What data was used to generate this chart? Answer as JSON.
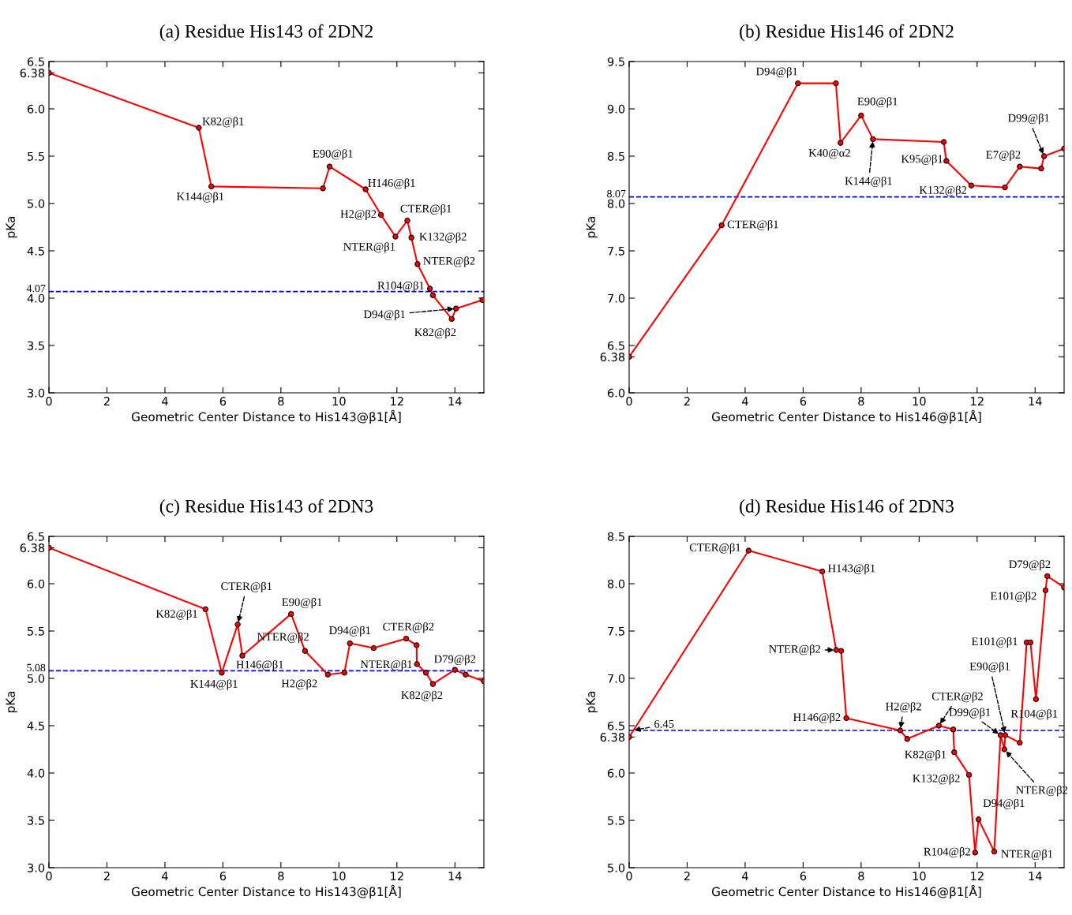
{
  "chart_data": [
    {
      "type": "line",
      "title": "(a) Residue His143 of 2DN2",
      "xlabel": "Geometric Center Distance to His143@β1[Å]",
      "ylabel": "pKa",
      "xlim": [
        0,
        15
      ],
      "xticks": [
        0,
        2,
        4,
        6,
        8,
        10,
        12,
        14
      ],
      "ylim": [
        3.0,
        6.5
      ],
      "yticks": [
        {
          "value": 3.0,
          "label": "3.0"
        },
        {
          "value": 3.5,
          "label": "3.5"
        },
        {
          "value": 4.0,
          "label": "4.0"
        },
        {
          "value": 4.5,
          "label": "4.5"
        },
        {
          "value": 5.0,
          "label": "5.0"
        },
        {
          "value": 5.5,
          "label": "5.5"
        },
        {
          "value": 6.0,
          "label": "6.0"
        },
        {
          "value": 6.38,
          "label": "6.38"
        },
        {
          "value": 6.5,
          "label": "6.5"
        }
      ],
      "grid": false,
      "marker": "circle",
      "line_style": "solid",
      "series": [
        {
          "color": "#ff0000",
          "x": [
            0,
            5.17,
            5.6,
            9.45,
            9.68,
            10.92,
            11.45,
            11.95,
            12.36,
            12.5,
            12.71,
            13.14,
            13.24,
            13.89,
            14.04,
            14.95
          ],
          "values": [
            6.38,
            5.8,
            5.18,
            5.16,
            5.39,
            5.15,
            4.88,
            4.65,
            4.82,
            4.64,
            4.36,
            4.1,
            4.03,
            3.78,
            3.89,
            3.98
          ]
        }
      ],
      "ref_lines": [
        {
          "axis": "y",
          "value": 4.07,
          "label": "4.07",
          "color": "#0000ff",
          "line_style": "dashed"
        }
      ],
      "annotations": [
        {
          "text": "K82@β1",
          "x": 5.17,
          "y": 5.8
        },
        {
          "text": "K144@β1",
          "x": 5.6,
          "y": 5.18
        },
        {
          "text": "E90@β1",
          "x": 9.68,
          "y": 5.39
        },
        {
          "text": "H146@β1",
          "x": 10.92,
          "y": 5.15
        },
        {
          "text": "H2@β2",
          "x": 11.45,
          "y": 4.88
        },
        {
          "text": "NTER@β1",
          "x": 11.95,
          "y": 4.65
        },
        {
          "text": "CTER@β1",
          "x": 12.36,
          "y": 4.82
        },
        {
          "text": "K132@β2",
          "x": 12.5,
          "y": 4.64
        },
        {
          "text": "NTER@β2",
          "x": 12.71,
          "y": 4.36
        },
        {
          "text": "R104@β1",
          "x": 13.14,
          "y": 4.1
        },
        {
          "text": "D94@β1",
          "x": 14.04,
          "y": 3.89
        },
        {
          "text": "K82@β2",
          "x": 13.89,
          "y": 3.78
        }
      ]
    },
    {
      "type": "line",
      "title": "(b) Residue His146 of 2DN2",
      "xlabel": "Geometric Center Distance to His146@β1[Å]",
      "ylabel": "pKa",
      "xlim": [
        0,
        15
      ],
      "xticks": [
        0,
        2,
        4,
        6,
        8,
        10,
        12,
        14
      ],
      "ylim": [
        6.0,
        9.5
      ],
      "yticks": [
        {
          "value": 6.0,
          "label": "6.0"
        },
        {
          "value": 6.38,
          "label": "6.38"
        },
        {
          "value": 6.5,
          "label": "6.5"
        },
        {
          "value": 7.0,
          "label": "7.0"
        },
        {
          "value": 7.5,
          "label": "7.5"
        },
        {
          "value": 8.0,
          "label": "8.0"
        },
        {
          "value": 8.5,
          "label": "8.5"
        },
        {
          "value": 9.0,
          "label": "9.0"
        },
        {
          "value": 9.5,
          "label": "9.5"
        }
      ],
      "grid": false,
      "marker": "circle",
      "line_style": "solid",
      "series": [
        {
          "color": "#ff0000",
          "x": [
            0,
            3.19,
            5.82,
            7.13,
            7.29,
            8.0,
            8.41,
            10.85,
            10.94,
            11.8,
            12.96,
            13.47,
            14.21,
            14.31,
            15.0
          ],
          "values": [
            6.38,
            7.77,
            9.27,
            9.27,
            8.64,
            8.93,
            8.68,
            8.65,
            8.45,
            8.19,
            8.17,
            8.39,
            8.37,
            8.5,
            8.58
          ]
        }
      ],
      "ref_lines": [
        {
          "axis": "y",
          "value": 8.07,
          "label": "8.07",
          "color": "#0000ff",
          "line_style": "dashed"
        }
      ],
      "annotations": [
        {
          "text": "CTER@β1",
          "x": 3.19,
          "y": 7.77
        },
        {
          "text": "D94@β1",
          "x": 5.82,
          "y": 9.27
        },
        {
          "text": "K40@α2",
          "x": 7.29,
          "y": 8.64
        },
        {
          "text": "E90@β1",
          "x": 8.0,
          "y": 8.93
        },
        {
          "text": "K144@β1",
          "x": 8.41,
          "y": 8.68
        },
        {
          "text": "K95@β1",
          "x": 10.94,
          "y": 8.45
        },
        {
          "text": "K132@β2",
          "x": 11.8,
          "y": 8.19
        },
        {
          "text": "E7@β2",
          "x": 13.47,
          "y": 8.39
        },
        {
          "text": "D99@β1",
          "x": 14.31,
          "y": 8.5
        }
      ]
    },
    {
      "type": "line",
      "title": "(c) Residue His143 of 2DN3",
      "xlabel": "Geometric Center Distance to His143@β1[Å]",
      "ylabel": "pKa",
      "xlim": [
        0,
        15
      ],
      "xticks": [
        0,
        2,
        4,
        6,
        8,
        10,
        12,
        14
      ],
      "ylim": [
        3.0,
        6.5
      ],
      "yticks": [
        {
          "value": 3.0,
          "label": "3.0"
        },
        {
          "value": 3.5,
          "label": "3.5"
        },
        {
          "value": 4.0,
          "label": "4.0"
        },
        {
          "value": 4.5,
          "label": "4.5"
        },
        {
          "value": 5.0,
          "label": "5.0"
        },
        {
          "value": 5.5,
          "label": "5.5"
        },
        {
          "value": 6.0,
          "label": "6.0"
        },
        {
          "value": 6.38,
          "label": "6.38"
        },
        {
          "value": 6.5,
          "label": "6.5"
        }
      ],
      "grid": false,
      "marker": "circle",
      "line_style": "solid",
      "series": [
        {
          "color": "#ff0000",
          "x": [
            0,
            5.4,
            5.96,
            6.51,
            6.67,
            8.35,
            8.83,
            9.62,
            10.19,
            10.38,
            11.2,
            12.32,
            12.68,
            12.69,
            13.0,
            13.24,
            14.0,
            14.37,
            15.0
          ],
          "values": [
            6.38,
            5.73,
            5.06,
            5.57,
            5.24,
            5.68,
            5.29,
            5.04,
            5.06,
            5.37,
            5.32,
            5.42,
            5.35,
            5.15,
            5.06,
            4.94,
            5.09,
            5.04,
            4.97
          ]
        }
      ],
      "ref_lines": [
        {
          "axis": "y",
          "value": 5.08,
          "label": "5.08",
          "color": "#0000ff",
          "line_style": "dashed"
        }
      ],
      "annotations": [
        {
          "text": "K82@β1",
          "x": 5.4,
          "y": 5.73
        },
        {
          "text": "K144@β1",
          "x": 5.96,
          "y": 5.06
        },
        {
          "text": "CTER@β1",
          "x": 6.51,
          "y": 5.57
        },
        {
          "text": "H146@β1",
          "x": 6.67,
          "y": 5.24
        },
        {
          "text": "E90@β1",
          "x": 8.35,
          "y": 5.68
        },
        {
          "text": "NTER@β2",
          "x": 8.83,
          "y": 5.29
        },
        {
          "text": "H2@β2",
          "x": 9.62,
          "y": 5.04
        },
        {
          "text": "D94@β1",
          "x": 10.38,
          "y": 5.37
        },
        {
          "text": "CTER@β2",
          "x": 12.32,
          "y": 5.42
        },
        {
          "text": "NTER@β1",
          "x": 12.69,
          "y": 5.15
        },
        {
          "text": "K82@β2",
          "x": 13.24,
          "y": 4.94
        },
        {
          "text": "D79@β2",
          "x": 14.0,
          "y": 5.09
        }
      ]
    },
    {
      "type": "line",
      "title": "(d) Residue His146 of 2DN3",
      "xlabel": "Geometric Center Distance to His146@β1[Å]",
      "ylabel": "pKa",
      "xlim": [
        0,
        15
      ],
      "xticks": [
        0,
        2,
        4,
        6,
        8,
        10,
        12,
        14
      ],
      "ylim": [
        5.0,
        8.5
      ],
      "yticks": [
        {
          "value": 5.0,
          "label": "5.0"
        },
        {
          "value": 5.5,
          "label": "5.5"
        },
        {
          "value": 6.0,
          "label": "6.0"
        },
        {
          "value": 6.38,
          "label": "6.38"
        },
        {
          "value": 6.5,
          "label": "6.5"
        },
        {
          "value": 7.0,
          "label": "7.0"
        },
        {
          "value": 7.5,
          "label": "7.5"
        },
        {
          "value": 8.0,
          "label": "8.0"
        },
        {
          "value": 8.5,
          "label": "8.5"
        }
      ],
      "grid": false,
      "marker": "circle",
      "line_style": "solid",
      "series": [
        {
          "color": "#ff0000",
          "x": [
            0,
            4.12,
            6.66,
            7.14,
            7.31,
            7.49,
            9.35,
            9.59,
            10.68,
            11.18,
            11.21,
            11.72,
            11.93,
            12.05,
            12.59,
            12.81,
            12.94,
            12.97,
            13.47,
            13.71,
            13.84,
            14.03,
            14.36,
            14.42,
            15.0
          ],
          "values": [
            6.38,
            8.35,
            8.13,
            7.3,
            7.29,
            6.58,
            6.45,
            6.36,
            6.5,
            6.46,
            6.22,
            5.98,
            5.16,
            5.51,
            5.17,
            6.4,
            6.25,
            6.4,
            6.32,
            7.38,
            7.38,
            6.78,
            7.93,
            8.08,
            7.96
          ]
        }
      ],
      "ref_lines": [
        {
          "axis": "y",
          "value": 6.45,
          "color": "#0000ff",
          "line_style": "dashed"
        }
      ],
      "annotations": [
        {
          "text": "CTER@β1",
          "x": 4.12,
          "y": 8.35
        },
        {
          "text": "H143@β1",
          "x": 6.66,
          "y": 8.13
        },
        {
          "text": "NTER@β2",
          "x": 7.14,
          "y": 7.3
        },
        {
          "text": "H146@β2",
          "x": 7.49,
          "y": 6.58
        },
        {
          "text": "H2@β2",
          "x": 9.35,
          "y": 6.45
        },
        {
          "text": "K82@β1",
          "x": 11.21,
          "y": 6.22
        },
        {
          "text": "CTER@β2",
          "x": 10.68,
          "y": 6.5
        },
        {
          "text": "K132@β2",
          "x": 11.72,
          "y": 5.98
        },
        {
          "text": "R104@β2",
          "x": 11.93,
          "y": 5.16
        },
        {
          "text": "D94@β1",
          "x": 12.05,
          "y": 5.51
        },
        {
          "text": "NTER@β1",
          "x": 12.59,
          "y": 5.17
        },
        {
          "text": "D99@β1",
          "x": 12.81,
          "y": 6.4
        },
        {
          "text": "NTER@β2",
          "x": 12.94,
          "y": 6.25
        },
        {
          "text": "E90@β1",
          "x": 12.97,
          "y": 6.4
        },
        {
          "text": "E101@β1",
          "x": 13.71,
          "y": 7.38
        },
        {
          "text": "R104@β1",
          "x": 14.03,
          "y": 6.78
        },
        {
          "text": "E101@β2",
          "x": 14.36,
          "y": 7.93
        },
        {
          "text": "D79@β2",
          "x": 14.42,
          "y": 8.08
        },
        {
          "text": "6.45",
          "x": 0.1,
          "y": 6.45
        }
      ]
    }
  ]
}
